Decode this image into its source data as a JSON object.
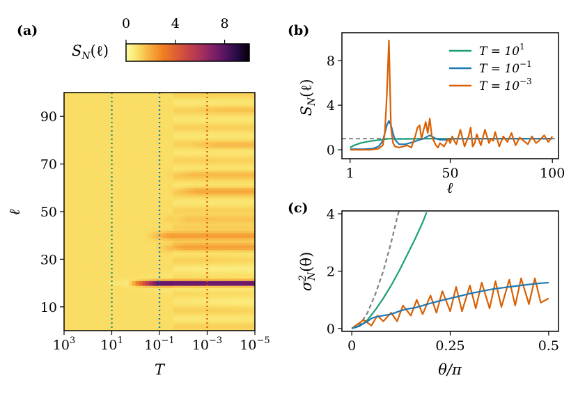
{
  "figure": {
    "panel_labels": {
      "a": "(a)",
      "b": "(b)",
      "c": "(c)"
    }
  },
  "chart_data": [
    {
      "id": "a",
      "type": "heatmap",
      "title": "",
      "xlabel": "T",
      "ylabel": "ℓ",
      "x_scale": "log-reversed",
      "x_ticks": [
        {
          "label_base": "10",
          "label_exp": "3",
          "log10": 3
        },
        {
          "label_base": "10",
          "label_exp": "1",
          "log10": 1
        },
        {
          "label_base": "10",
          "label_exp": "−1",
          "log10": -1
        },
        {
          "label_base": "10",
          "label_exp": "−3",
          "log10": -3
        },
        {
          "label_base": "10",
          "label_exp": "−5",
          "log10": -5
        }
      ],
      "xlim_log10": [
        3,
        -5
      ],
      "ylim": [
        0,
        100
      ],
      "y_ticks": [
        10,
        30,
        50,
        70,
        90
      ],
      "colorbar": {
        "label": "S_N(ℓ)",
        "label_base": "S",
        "label_sub": "N",
        "label_arg": "(ℓ)",
        "range": [
          0,
          10
        ],
        "ticks": [
          0,
          4,
          8
        ],
        "colormap": "inferno-reversed"
      },
      "vertical_markers": [
        {
          "name": "T = 10^1",
          "log10": 1,
          "color": "#1a9e77"
        },
        {
          "name": "T = 10^-1",
          "log10": -1,
          "color": "#1f78b4"
        },
        {
          "name": "T = 10^-3",
          "log10": -3,
          "color": "#d95f02"
        }
      ],
      "bands": [
        {
          "l": 20,
          "strength": 10,
          "onset_log10": -0.5
        },
        {
          "l": 35,
          "strength": 2.2,
          "onset_log10": -1.6
        },
        {
          "l": 40,
          "strength": 2.6,
          "onset_log10": -1.2
        },
        {
          "l": 47,
          "strength": 1.8,
          "onset_log10": -1.8
        },
        {
          "l": 59,
          "strength": 2.0,
          "onset_log10": -2.2
        },
        {
          "l": 66,
          "strength": 1.6,
          "onset_log10": -2.0
        },
        {
          "l": 78,
          "strength": 1.5,
          "onset_log10": -3.0
        },
        {
          "l": 93,
          "strength": 1.3,
          "onset_log10": -3.2
        }
      ]
    },
    {
      "id": "b",
      "type": "line",
      "title": "",
      "xlabel": "ℓ",
      "ylabel": "S_N(ℓ)",
      "ylabel_base": "S",
      "ylabel_sub": "N",
      "ylabel_arg": "(ℓ)",
      "xlim": [
        -3,
        103
      ],
      "ylim": [
        -0.8,
        10.5
      ],
      "x_ticks": [
        1,
        50,
        100
      ],
      "y_ticks": [
        0,
        4,
        8
      ],
      "reference_line": {
        "y": 1.0,
        "style": "dashed",
        "color": "#808080"
      },
      "legend_position": "top-right",
      "series": [
        {
          "name": "T = 10^1",
          "legend_base": "T = 10",
          "legend_exp": "1",
          "color": "#1a9e77",
          "x": [
            1,
            3,
            6,
            10,
            14,
            17,
            19,
            20,
            21,
            23,
            26,
            30,
            35,
            40,
            45,
            50,
            60,
            70,
            80,
            90,
            100
          ],
          "y": [
            0.2,
            0.4,
            0.6,
            0.75,
            0.85,
            0.92,
            0.97,
            1.0,
            1.0,
            0.98,
            0.97,
            0.98,
            1.0,
            1.0,
            1.0,
            1.0,
            1.0,
            1.0,
            1.0,
            1.0,
            1.0
          ]
        },
        {
          "name": "T = 10^-1",
          "legend_base": "T = 10",
          "legend_exp": "−1",
          "color": "#1f78b4",
          "x": [
            1,
            4,
            8,
            12,
            15,
            17,
            18,
            19,
            20,
            21,
            22,
            23,
            25,
            28,
            32,
            35,
            37,
            39,
            40,
            41,
            43,
            45,
            48,
            52,
            56,
            60,
            65,
            70,
            80,
            90,
            100
          ],
          "y": [
            0.05,
            0.05,
            0.06,
            0.1,
            0.3,
            0.8,
            1.5,
            2.2,
            2.6,
            2.2,
            1.5,
            0.9,
            0.5,
            0.5,
            0.7,
            0.9,
            1.0,
            1.2,
            1.3,
            1.2,
            1.0,
            0.9,
            0.9,
            1.0,
            1.0,
            1.0,
            1.0,
            1.0,
            1.0,
            1.0,
            1.0
          ]
        },
        {
          "name": "T = 10^-3",
          "legend_base": "T = 10",
          "legend_exp": "−3",
          "color": "#d95f02",
          "x": [
            1,
            3,
            5,
            7,
            9,
            11,
            13,
            15,
            17,
            18,
            19,
            20,
            21,
            22,
            23,
            25,
            27,
            29,
            31,
            33,
            34,
            35,
            36,
            37,
            38,
            39,
            40,
            41,
            42,
            43,
            44,
            45,
            47,
            49,
            50,
            51,
            52,
            53,
            55,
            57,
            59,
            60,
            61,
            62,
            63,
            65,
            67,
            69,
            70,
            71,
            72,
            74,
            76,
            78,
            80,
            82,
            84,
            86,
            88,
            90,
            92,
            94,
            96,
            98,
            100
          ],
          "y": [
            0.0,
            0.0,
            0.0,
            0.0,
            0.0,
            0.0,
            0.05,
            0.1,
            0.4,
            1.5,
            5.0,
            9.8,
            2.0,
            0.6,
            0.3,
            0.2,
            0.3,
            0.4,
            0.2,
            1.3,
            2.0,
            2.2,
            1.0,
            1.8,
            2.5,
            1.5,
            2.8,
            1.2,
            0.8,
            0.4,
            0.2,
            0.6,
            0.3,
            1.0,
            0.6,
            1.2,
            0.8,
            0.5,
            1.8,
            0.3,
            1.2,
            2.0,
            0.3,
            0.6,
            1.4,
            0.4,
            1.8,
            0.6,
            1.0,
            0.8,
            1.6,
            0.3,
            1.2,
            0.7,
            1.5,
            0.4,
            1.1,
            0.8,
            0.5,
            1.2,
            0.6,
            0.9,
            1.3,
            0.7,
            1.2
          ]
        }
      ]
    },
    {
      "id": "c",
      "type": "line",
      "title": "",
      "xlabel": "θ/π",
      "ylabel": "σ²_N(θ)",
      "ylabel_base": "σ",
      "ylabel_sup": "2",
      "ylabel_sub": "N",
      "ylabel_arg": "(θ)",
      "xlim": [
        -0.025,
        0.525
      ],
      "ylim": [
        -0.1,
        4.1
      ],
      "x_ticks": [
        0,
        0.25,
        0.5
      ],
      "y_ticks": [
        0,
        2,
        4
      ],
      "series": [
        {
          "name": "gaussian-reference",
          "style": "dashed",
          "color": "#808080",
          "x": [
            0.0,
            0.02,
            0.04,
            0.06,
            0.08,
            0.1,
            0.115,
            0.12
          ],
          "y": [
            0.0,
            0.12,
            0.55,
            1.2,
            2.0,
            3.0,
            3.85,
            4.1
          ]
        },
        {
          "name": "T = 10^1",
          "color": "#1a9e77",
          "x": [
            0.0,
            0.02,
            0.04,
            0.06,
            0.08,
            0.1,
            0.12,
            0.14,
            0.16,
            0.18,
            0.19
          ],
          "y": [
            0.0,
            0.08,
            0.3,
            0.65,
            1.05,
            1.5,
            2.0,
            2.55,
            3.1,
            3.7,
            4.05
          ]
        },
        {
          "name": "T = 10^-3",
          "color": "#d95f02",
          "x": [
            0.0,
            0.03,
            0.05,
            0.065,
            0.08,
            0.1,
            0.115,
            0.13,
            0.15,
            0.165,
            0.18,
            0.2,
            0.215,
            0.23,
            0.25,
            0.265,
            0.28,
            0.3,
            0.315,
            0.33,
            0.35,
            0.365,
            0.38,
            0.4,
            0.415,
            0.43,
            0.45,
            0.465,
            0.48,
            0.5
          ],
          "y": [
            0.0,
            0.3,
            0.1,
            0.45,
            0.25,
            0.55,
            0.25,
            0.8,
            0.45,
            1.0,
            0.5,
            1.15,
            0.55,
            1.3,
            0.6,
            1.45,
            0.6,
            1.5,
            0.7,
            1.6,
            0.7,
            1.65,
            0.75,
            1.7,
            0.8,
            1.75,
            0.85,
            1.75,
            0.9,
            1.05
          ]
        },
        {
          "name": "T = 10^-1",
          "color": "#1f78b4",
          "x": [
            0.0,
            0.02,
            0.04,
            0.05,
            0.06,
            0.08,
            0.1,
            0.12,
            0.14,
            0.16,
            0.18,
            0.2,
            0.22,
            0.25,
            0.28,
            0.3,
            0.33,
            0.36,
            0.4,
            0.44,
            0.48,
            0.5
          ],
          "y": [
            0.0,
            0.1,
            0.25,
            0.35,
            0.4,
            0.45,
            0.5,
            0.6,
            0.68,
            0.72,
            0.8,
            0.88,
            0.95,
            1.05,
            1.15,
            1.22,
            1.3,
            1.38,
            1.45,
            1.52,
            1.58,
            1.6
          ]
        }
      ]
    }
  ]
}
